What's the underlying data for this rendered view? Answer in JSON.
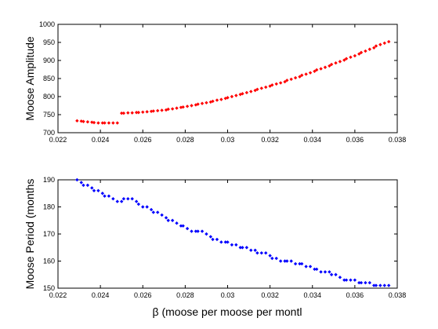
{
  "chart_data": [
    {
      "type": "scatter",
      "title": "",
      "xlabel": "",
      "ylabel": "Moose Amplitude",
      "xlim": [
        0.022,
        0.038
      ],
      "ylim": [
        700,
        1000
      ],
      "xticks": [
        "0.022",
        "0.024",
        "0.026",
        "0.028",
        "0.03",
        "0.032",
        "0.034",
        "0.036",
        "0.038"
      ],
      "yticks": [
        "700",
        "750",
        "800",
        "850",
        "900",
        "950",
        "1000"
      ],
      "grid": false,
      "marker_color": "#ff0000",
      "series": [
        {
          "x": [
            0.0229,
            0.0231,
            0.0232,
            0.0234,
            0.0236,
            0.0237,
            0.0239,
            0.0241,
            0.0242,
            0.0244,
            0.0246,
            0.0248,
            0.025,
            0.0251,
            0.0253,
            0.0255,
            0.0257,
            0.0258,
            0.026,
            0.0262,
            0.0264,
            0.0265,
            0.0267,
            0.0269,
            0.0271,
            0.0272,
            0.0274,
            0.0276,
            0.0278,
            0.0279,
            0.0281,
            0.0283,
            0.0285,
            0.0286,
            0.0288,
            0.029,
            0.0292,
            0.0293,
            0.0295,
            0.0297,
            0.0299,
            0.03,
            0.0302,
            0.0304,
            0.0306,
            0.0307,
            0.0309,
            0.0311,
            0.0313,
            0.0314,
            0.0316,
            0.0318,
            0.032,
            0.0321,
            0.0323,
            0.0325,
            0.0327,
            0.0328,
            0.033,
            0.0332,
            0.0334,
            0.0335,
            0.0337,
            0.0339,
            0.0341,
            0.0342,
            0.0344,
            0.0346,
            0.0348,
            0.0349,
            0.0351,
            0.0353,
            0.0355,
            0.0356,
            0.0358,
            0.036,
            0.0362,
            0.0363,
            0.0365,
            0.0367,
            0.0369,
            0.037,
            0.0372,
            0.0374,
            0.0376
          ],
          "y": [
            733,
            732,
            731,
            730,
            729,
            728,
            727,
            727,
            727,
            727,
            727,
            727,
            754,
            754,
            755,
            755,
            756,
            756,
            757,
            758,
            759,
            760,
            761,
            762,
            763,
            765,
            766,
            768,
            770,
            771,
            773,
            775,
            777,
            779,
            781,
            783,
            785,
            787,
            790,
            792,
            795,
            797,
            800,
            803,
            806,
            808,
            811,
            814,
            817,
            820,
            823,
            826,
            829,
            832,
            835,
            838,
            841,
            845,
            848,
            852,
            855,
            859,
            862,
            866,
            870,
            874,
            877,
            881,
            885,
            889,
            893,
            897,
            901,
            905,
            909,
            913,
            918,
            922,
            926,
            931,
            935,
            940,
            944,
            948,
            952
          ]
        }
      ]
    },
    {
      "type": "scatter",
      "title": "",
      "xlabel": "β (moose per moose per montl",
      "ylabel": "Moose Period (months",
      "xlim": [
        0.022,
        0.038
      ],
      "ylim": [
        150,
        190
      ],
      "xticks": [
        "0.022",
        "0.024",
        "0.026",
        "0.028",
        "0.03",
        "0.032",
        "0.034",
        "0.036",
        "0.038"
      ],
      "yticks": [
        "150",
        "160",
        "170",
        "180",
        "190"
      ],
      "grid": false,
      "marker_color": "#0000ff",
      "series": [
        {
          "x": [
            0.0229,
            0.0231,
            0.0232,
            0.0234,
            0.0236,
            0.0237,
            0.0239,
            0.0241,
            0.0242,
            0.0244,
            0.0246,
            0.0248,
            0.025,
            0.0251,
            0.0253,
            0.0255,
            0.0257,
            0.0258,
            0.026,
            0.0262,
            0.0264,
            0.0265,
            0.0267,
            0.0269,
            0.0271,
            0.0272,
            0.0274,
            0.0276,
            0.0278,
            0.0279,
            0.0281,
            0.0283,
            0.0285,
            0.0286,
            0.0288,
            0.029,
            0.0292,
            0.0293,
            0.0295,
            0.0297,
            0.0299,
            0.03,
            0.0302,
            0.0304,
            0.0306,
            0.0307,
            0.0309,
            0.0311,
            0.0313,
            0.0314,
            0.0316,
            0.0318,
            0.032,
            0.0321,
            0.0323,
            0.0325,
            0.0327,
            0.0328,
            0.033,
            0.0332,
            0.0334,
            0.0335,
            0.0337,
            0.0339,
            0.0341,
            0.0342,
            0.0344,
            0.0346,
            0.0348,
            0.0349,
            0.0351,
            0.0353,
            0.0355,
            0.0356,
            0.0358,
            0.036,
            0.0362,
            0.0363,
            0.0365,
            0.0367,
            0.0369,
            0.037,
            0.0372,
            0.0374,
            0.0376
          ],
          "y": [
            190,
            189,
            188,
            188,
            187,
            186,
            186,
            185,
            184,
            184,
            183,
            182,
            182,
            183,
            183,
            183,
            182,
            181,
            180,
            180,
            179,
            178,
            178,
            177,
            176,
            175,
            175,
            174,
            173,
            173,
            172,
            171,
            171,
            171,
            171,
            170,
            169,
            168,
            168,
            167,
            167,
            167,
            166,
            166,
            165,
            165,
            165,
            164,
            164,
            163,
            163,
            163,
            162,
            161,
            161,
            160,
            160,
            160,
            160,
            159,
            159,
            159,
            158,
            158,
            157,
            157,
            156,
            156,
            156,
            155,
            155,
            154,
            153,
            153,
            153,
            153,
            152,
            152,
            152,
            152,
            151,
            151,
            151,
            151,
            151
          ]
        }
      ]
    }
  ]
}
